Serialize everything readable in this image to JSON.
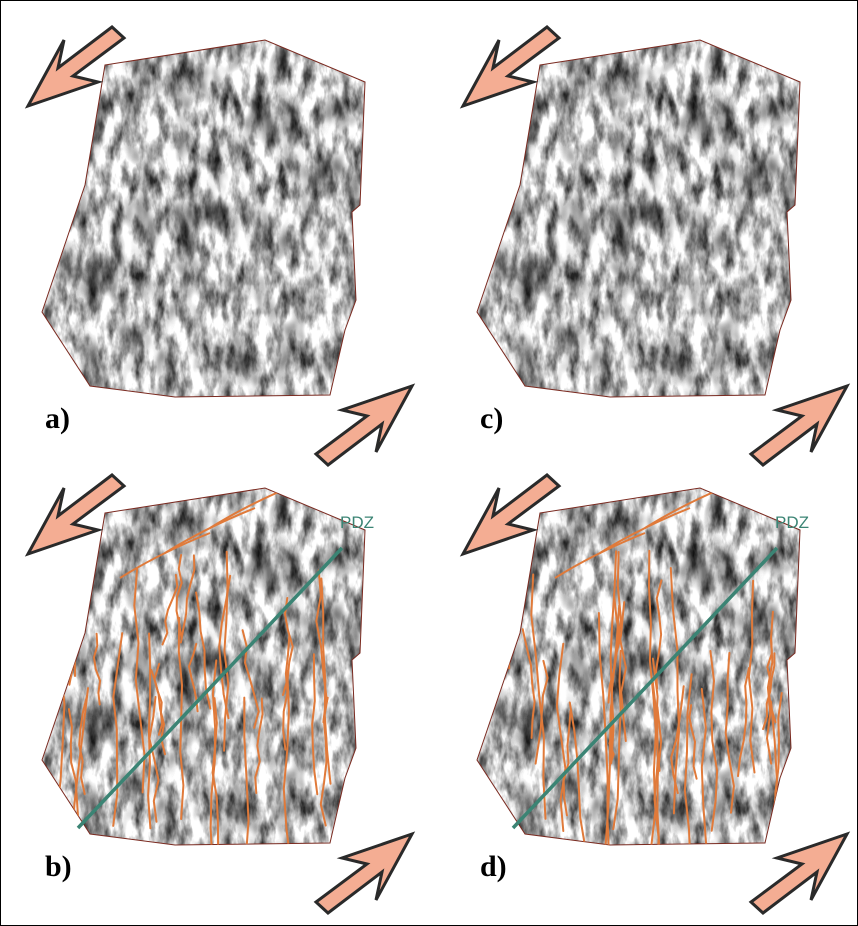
{
  "panels": [
    {
      "label": "a)"
    },
    {
      "label": "b)",
      "pdz_label": "PDZ"
    },
    {
      "label": "c)"
    },
    {
      "label": "d)",
      "pdz_label": "PDZ"
    }
  ]
}
